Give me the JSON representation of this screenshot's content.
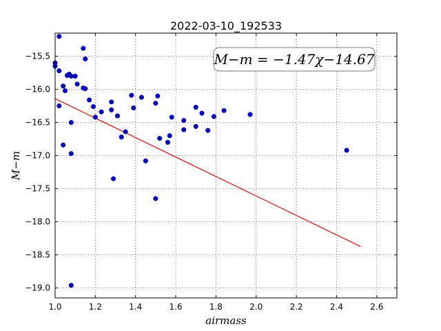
{
  "chart_data": {
    "type": "scatter",
    "title": "2022-03-10_192533",
    "xlabel": "airmass",
    "ylabel": "M−m",
    "xlim": [
      1.0,
      2.7
    ],
    "ylim": [
      -19.15,
      -15.15
    ],
    "xticks": [
      1.0,
      1.2,
      1.4,
      1.6,
      1.8,
      2.0,
      2.2,
      2.4,
      2.6
    ],
    "xtick_labels": [
      "1.0",
      "1.2",
      "1.4",
      "1.6",
      "1.8",
      "2.0",
      "2.2",
      "2.4",
      "2.6"
    ],
    "yticks": [
      -15.5,
      -16.0,
      -16.5,
      -17.0,
      -17.5,
      -18.0,
      -18.5,
      -19.0
    ],
    "ytick_labels": [
      "−15.5",
      "−16.0",
      "−16.5",
      "−17.0",
      "−17.5",
      "−18.0",
      "−18.5",
      "−19.0"
    ],
    "grid": true,
    "annotation": "M−m = −1.47χ−14.67",
    "fit": {
      "slope": -1.47,
      "intercept": -14.67,
      "x_range": [
        1.0,
        2.52
      ],
      "color": "#ff0000"
    },
    "point_color": "#0000cc",
    "x": [
      1.0,
      1.0,
      1.02,
      1.02,
      1.02,
      1.04,
      1.04,
      1.05,
      1.06,
      1.07,
      1.08,
      1.08,
      1.08,
      1.1,
      1.11,
      1.14,
      1.14,
      1.15,
      1.15,
      1.17,
      1.19,
      1.2,
      1.23,
      1.28,
      1.28,
      1.29,
      1.31,
      1.33,
      1.35,
      1.38,
      1.39,
      1.43,
      1.45,
      1.5,
      1.5,
      1.51,
      1.52,
      1.56,
      1.57,
      1.58,
      1.64,
      1.64,
      1.7,
      1.7,
      1.73,
      1.76,
      1.79,
      1.84,
      1.97,
      2.45,
      1.08
    ],
    "y": [
      -15.6,
      -15.65,
      -15.72,
      -15.2,
      -16.25,
      -15.95,
      -16.84,
      -16.02,
      -15.79,
      -15.77,
      -15.8,
      -16.5,
      -16.97,
      -15.8,
      -15.92,
      -15.38,
      -15.98,
      -15.54,
      -15.99,
      -16.16,
      -16.26,
      -16.42,
      -16.34,
      -16.19,
      -16.31,
      -17.35,
      -16.4,
      -16.72,
      -16.64,
      -16.09,
      -16.28,
      -16.12,
      -17.08,
      -17.65,
      -16.21,
      -16.1,
      -16.74,
      -16.8,
      -16.7,
      -16.42,
      -16.47,
      -16.61,
      -16.56,
      -16.27,
      -16.36,
      -16.62,
      -16.41,
      -16.32,
      -16.38,
      -16.92,
      -18.96
    ]
  }
}
